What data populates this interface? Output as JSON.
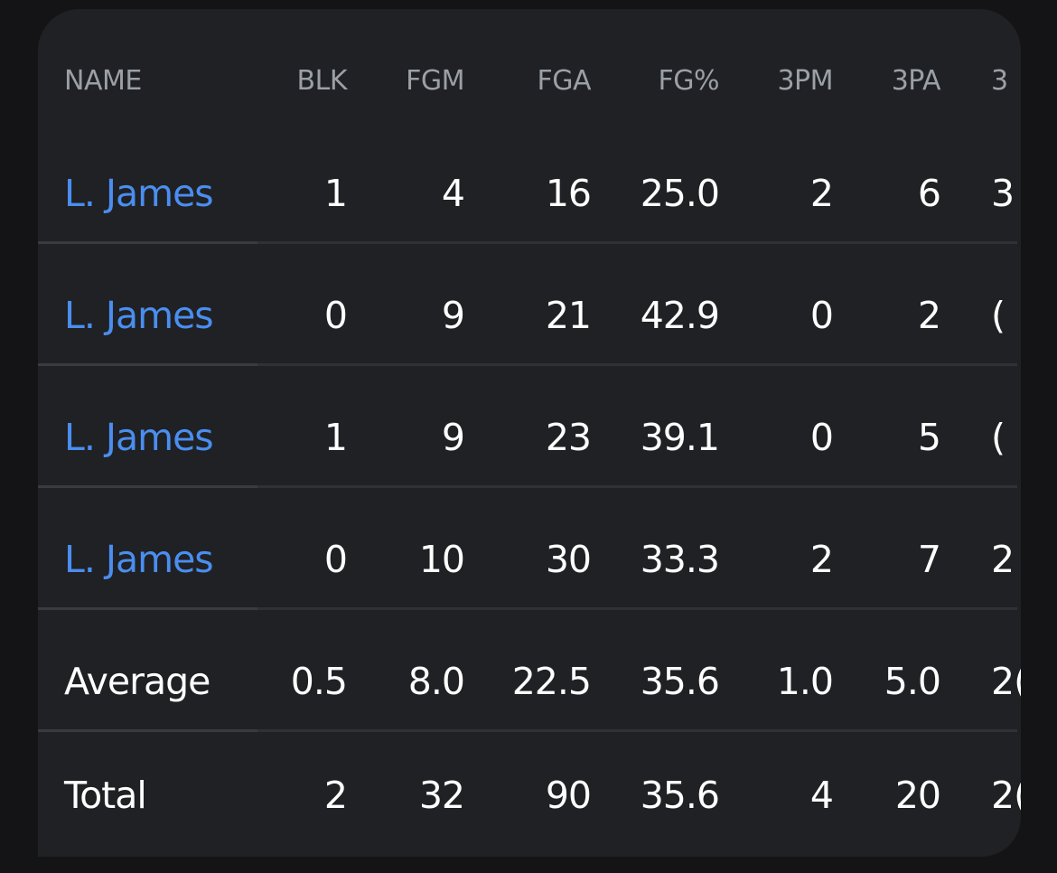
{
  "table": {
    "headers": {
      "name": "NAME",
      "blk": "BLK",
      "fgm": "FGM",
      "fga": "FGA",
      "fg_pct": "FG%",
      "three_pm": "3PM",
      "three_pa": "3PA",
      "three_pct_partial": "3"
    },
    "rows": [
      {
        "name": "L. James",
        "blk": "1",
        "fgm": "4",
        "fga": "16",
        "fg_pct": "25.0",
        "three_pm": "2",
        "three_pa": "6",
        "three_pct_partial": "3"
      },
      {
        "name": "L. James",
        "blk": "0",
        "fgm": "9",
        "fga": "21",
        "fg_pct": "42.9",
        "three_pm": "0",
        "three_pa": "2",
        "three_pct_partial": "("
      },
      {
        "name": "L. James",
        "blk": "1",
        "fgm": "9",
        "fga": "23",
        "fg_pct": "39.1",
        "three_pm": "0",
        "three_pa": "5",
        "three_pct_partial": "("
      },
      {
        "name": "L. James",
        "blk": "0",
        "fgm": "10",
        "fga": "30",
        "fg_pct": "33.3",
        "three_pm": "2",
        "three_pa": "7",
        "three_pct_partial": "2"
      }
    ],
    "average": {
      "name": "Average",
      "blk": "0.5",
      "fgm": "8.0",
      "fga": "22.5",
      "fg_pct": "35.6",
      "three_pm": "1.0",
      "three_pa": "5.0",
      "three_pct_partial": "2("
    },
    "total": {
      "name": "Total",
      "blk": "2",
      "fgm": "32",
      "fga": "90",
      "fg_pct": "35.6",
      "three_pm": "4",
      "three_pa": "20",
      "three_pct_partial": "2("
    }
  },
  "colors": {
    "background": "#141416",
    "card": "#202124",
    "link": "#4a8ef0",
    "header_text": "#9aa0a6",
    "text": "#ffffff"
  }
}
